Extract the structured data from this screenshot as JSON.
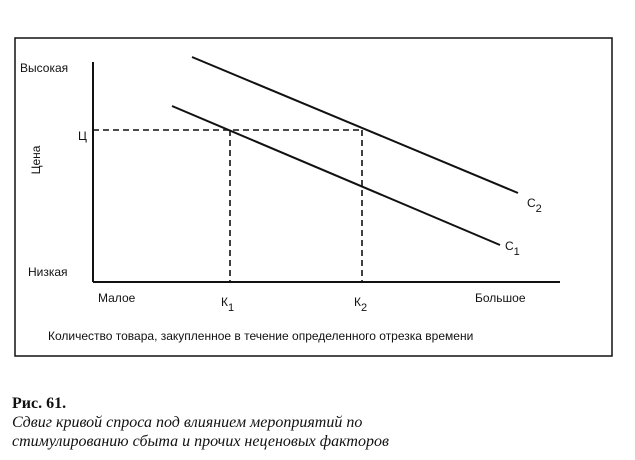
{
  "axis": {
    "y_high": "Высокая",
    "y_title": "Цена",
    "y_low": "Низкая",
    "price_mark": "Ц",
    "x_low": "Малое",
    "x_high": "Большое",
    "x_title": "Количество товара, закупленное в течение определенного отрезка времени"
  },
  "points": [
    {
      "letter": "К",
      "sub": "1"
    },
    {
      "letter": "К",
      "sub": "2"
    }
  ],
  "curves": [
    {
      "letter": "С",
      "sub": "1"
    },
    {
      "letter": "С",
      "sub": "2"
    }
  ],
  "caption": {
    "label": "Рис. 61.",
    "lines": [
      "Сдвиг кривой спроса под влиянием мероприятий по",
      "стимулированию сбыта и прочих неценовых факторов"
    ]
  }
}
